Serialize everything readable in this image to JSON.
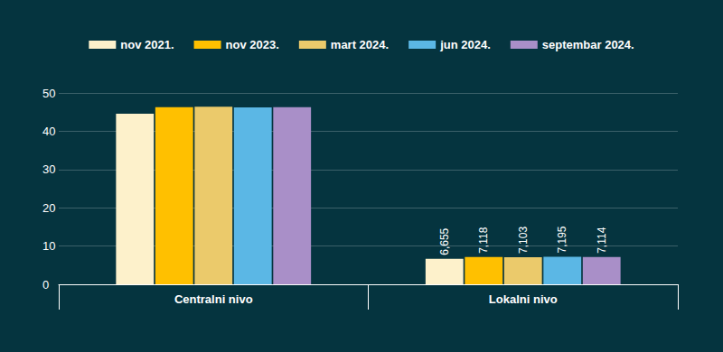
{
  "chart_data": {
    "type": "bar",
    "categories": [
      "Centralni nivo",
      "Lokalni nivo"
    ],
    "series": [
      {
        "name": "nov 2021.",
        "color": "#fdf1cb",
        "values": [
          44.6,
          6.655
        ],
        "value_labels": [
          null,
          "6,655"
        ]
      },
      {
        "name": "nov 2023.",
        "color": "#ffc000",
        "values": [
          46.3,
          7.118
        ],
        "value_labels": [
          null,
          "7,118"
        ]
      },
      {
        "name": "mart 2024.",
        "color": "#ebca6b",
        "values": [
          46.4,
          7.103
        ],
        "value_labels": [
          null,
          "7,103"
        ]
      },
      {
        "name": "jun 2024.",
        "color": "#5bb7e5",
        "values": [
          46.2,
          7.195
        ],
        "value_labels": [
          null,
          "7,195"
        ]
      },
      {
        "name": "septembar 2024.",
        "color": "#a98fc8",
        "values": [
          46.3,
          7.114
        ],
        "value_labels": [
          null,
          "7,114"
        ]
      }
    ],
    "ylim": [
      0,
      50
    ],
    "yticks": [
      0,
      10,
      20,
      30,
      40,
      50
    ],
    "grid": true,
    "legend": "top",
    "data_labels": true
  }
}
